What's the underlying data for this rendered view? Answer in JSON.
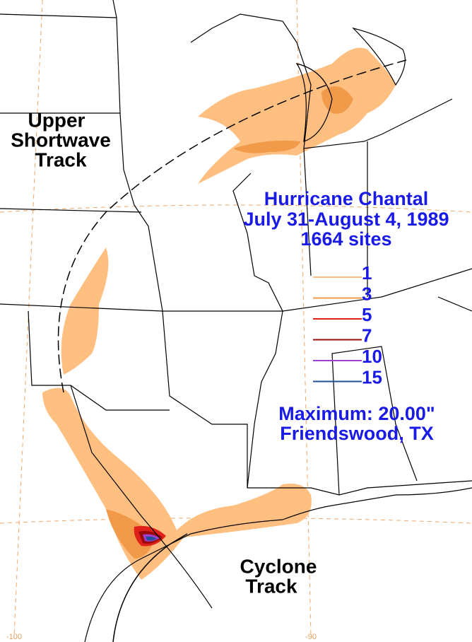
{
  "title": {
    "name": "Hurricane Chantal",
    "dates": "July 31-August 4, 1989",
    "sites": "1664 sites"
  },
  "legend": [
    {
      "value": 1,
      "color": "#ffbf80"
    },
    {
      "value": 3,
      "color": "#f09a4a"
    },
    {
      "value": 5,
      "color": "#e0201a"
    },
    {
      "value": 7,
      "color": "#9a0a0a"
    },
    {
      "value": 10,
      "color": "#a040d0"
    },
    {
      "value": 15,
      "color": "#20509a"
    }
  ],
  "maximum": {
    "text": "Maximum: 20.00\"",
    "location": "Friendswood, TX"
  },
  "tracks": {
    "upper": [
      "Upper",
      "Shortwave",
      "Track"
    ],
    "cyclone": [
      "Cyclone",
      "Track"
    ]
  },
  "longitudes": [
    -100,
    -90
  ]
}
